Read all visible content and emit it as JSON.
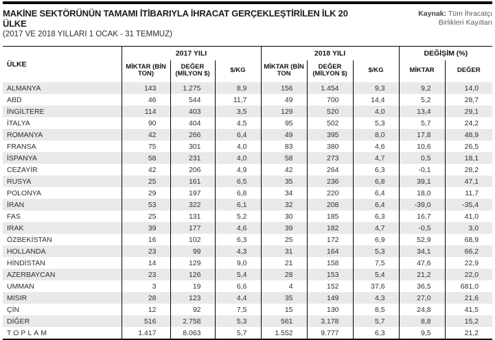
{
  "page": {
    "title": "MAKİNE SEKTÖRÜNÜN TAMAMI İTİBARIYLA İHRACAT GERÇEKLEŞTİRİLEN İLK 20 ÜLKE",
    "subtitle": "(2017 VE 2018 YILLARI 1 OCAK - 31 TEMMUZ)",
    "source": {
      "label": "Kaynak:",
      "line1": "Tüm İhracatçı",
      "line2": "Birlikleri Kayıtları"
    }
  },
  "table": {
    "country_header": "ÜLKE",
    "groups": [
      {
        "label": "2017 YILI",
        "span": 3
      },
      {
        "label": "2018 YILI",
        "span": 3
      },
      {
        "label": "DEĞİŞİM (%)",
        "span": 2
      }
    ],
    "sub_headers": [
      "MİKTAR (BİN TON)",
      "DEĞER (MİLYON $)",
      "$/KG",
      "MİKTAR (BİN TON",
      "DEĞER (MİLYON $)",
      "$/KG",
      "MİKTAR",
      "DEĞER"
    ]
  },
  "colors": {
    "row_stripe": "#e9e9e9",
    "border": "#000000",
    "text": "#2e2e32",
    "source_text": "#595a5e"
  },
  "chart_data": {
    "type": "table",
    "title": "MAKİNE SEKTÖRÜNÜN TAMAMI İTİBARIYLA İHRACAT GERÇEKLEŞTİRİLEN İLK 20 ÜLKE",
    "subtitle": "(2017 VE 2018 YILLARI 1 OCAK - 31 TEMMUZ)",
    "source": "Kaynak: Tüm İhracatçı Birlikleri Kayıtları",
    "columns": [
      "ÜLKE",
      "2017 YILI MİKTAR (BİN TON)",
      "2017 YILI DEĞER (MİLYON $)",
      "2017 YILI $/KG",
      "2018 YILI MİKTAR (BİN TON)",
      "2018 YILI DEĞER (MİLYON $)",
      "2018 YILI $/KG",
      "DEĞİŞİM (%) MİKTAR",
      "DEĞİŞİM (%) DEĞER"
    ],
    "rows": [
      [
        "ALMANYA",
        "143",
        "1.275",
        "8,9",
        "156",
        "1.454",
        "9,3",
        "9,2",
        "14,0"
      ],
      [
        "ABD",
        "46",
        "544",
        "11,7",
        "49",
        "700",
        "14,4",
        "5,2",
        "28,7"
      ],
      [
        "İNGİLTERE",
        "114",
        "403",
        "3,5",
        "129",
        "520",
        "4,0",
        "13,4",
        "29,1"
      ],
      [
        "İTALYA",
        "90",
        "404",
        "4,5",
        "95",
        "502",
        "5,3",
        "5,7",
        "24,2"
      ],
      [
        "ROMANYA",
        "42",
        "266",
        "6,4",
        "49",
        "395",
        "8,0",
        "17,8",
        "48,9"
      ],
      [
        "FRANSA",
        "75",
        "301",
        "4,0",
        "83",
        "380",
        "4,6",
        "10,6",
        "26,5"
      ],
      [
        "İSPANYA",
        "58",
        "231",
        "4,0",
        "58",
        "273",
        "4,7",
        "0,5",
        "18,1"
      ],
      [
        "CEZAYİR",
        "42",
        "206",
        "4,9",
        "42",
        "264",
        "6,3",
        "-0,1",
        "28,2"
      ],
      [
        "RUSYA",
        "25",
        "161",
        "6,5",
        "35",
        "236",
        "6,8",
        "39,1",
        "47,1"
      ],
      [
        "POLONYA",
        "29",
        "197",
        "6,8",
        "34",
        "220",
        "6,4",
        "18,0",
        "11,7"
      ],
      [
        "İRAN",
        "53",
        "322",
        "6,1",
        "32",
        "208",
        "6,4",
        "-39,0",
        "-35,4"
      ],
      [
        "FAS",
        "25",
        "131",
        "5,2",
        "30",
        "185",
        "6,3",
        "16,7",
        "41,0"
      ],
      [
        "IRAK",
        "39",
        "177",
        "4,6",
        "39",
        "182",
        "4,7",
        "-0,5",
        "3,0"
      ],
      [
        "ÖZBEKİSTAN",
        "16",
        "102",
        "6,3",
        "25",
        "172",
        "6,9",
        "52,9",
        "68,9"
      ],
      [
        "HOLLANDA",
        "23",
        "99",
        "4,3",
        "31",
        "164",
        "5,3",
        "34,1",
        "66,2"
      ],
      [
        "HİNDİSTAN",
        "14",
        "129",
        "9,0",
        "21",
        "158",
        "7,5",
        "47,6",
        "22,9"
      ],
      [
        "AZERBAYCAN",
        "23",
        "126",
        "5,4",
        "28",
        "153",
        "5,4",
        "21,2",
        "22,0"
      ],
      [
        "UMMAN",
        "3",
        "19",
        "6,6",
        "4",
        "152",
        "37,6",
        "36,5",
        "681,0"
      ],
      [
        "MISIR",
        "28",
        "123",
        "4,4",
        "35",
        "149",
        "4,3",
        "27,0",
        "21,6"
      ],
      [
        "ÇİN",
        "12",
        "92",
        "7,5",
        "15",
        "130",
        "8,5",
        "24,8",
        "41,5"
      ],
      [
        "DİĞER",
        "516",
        "2.758",
        "5,3",
        "561",
        "3.178",
        "5,7",
        "8,8",
        "15,2"
      ]
    ],
    "total": [
      "TOPLAM",
      "1.417",
      "8.063",
      "5,7",
      "1.552",
      "9.777",
      "6,3",
      "9,5",
      "21,2"
    ]
  }
}
